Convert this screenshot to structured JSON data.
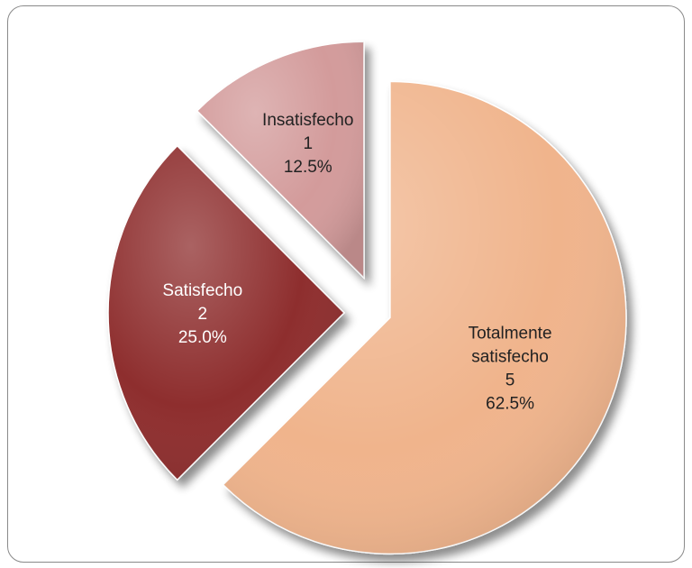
{
  "chart_data": {
    "type": "pie",
    "title": "",
    "slices": [
      {
        "name": "Totalmente satisfecho",
        "value": 5,
        "percent": "62.5%",
        "color": "#F0B48C",
        "label_color": "#222222"
      },
      {
        "name": "Satisfecho",
        "value": 2,
        "percent": "25.0%",
        "color": "#8E2F2F",
        "label_color": "#ffffff"
      },
      {
        "name": "Insatisfecho",
        "value": 1,
        "percent": "12.5%",
        "color": "#D39B9B",
        "label_color": "#222222"
      }
    ],
    "labels": [
      {
        "lines": [
          "Totalmente",
          "satisfecho",
          "5",
          "62.5%"
        ]
      },
      {
        "lines": [
          "Satisfecho",
          "2",
          "25.0%"
        ]
      },
      {
        "lines": [
          "Insatisfecho",
          "1",
          "12.5%"
        ]
      }
    ],
    "legend": "none",
    "exploded": true
  }
}
